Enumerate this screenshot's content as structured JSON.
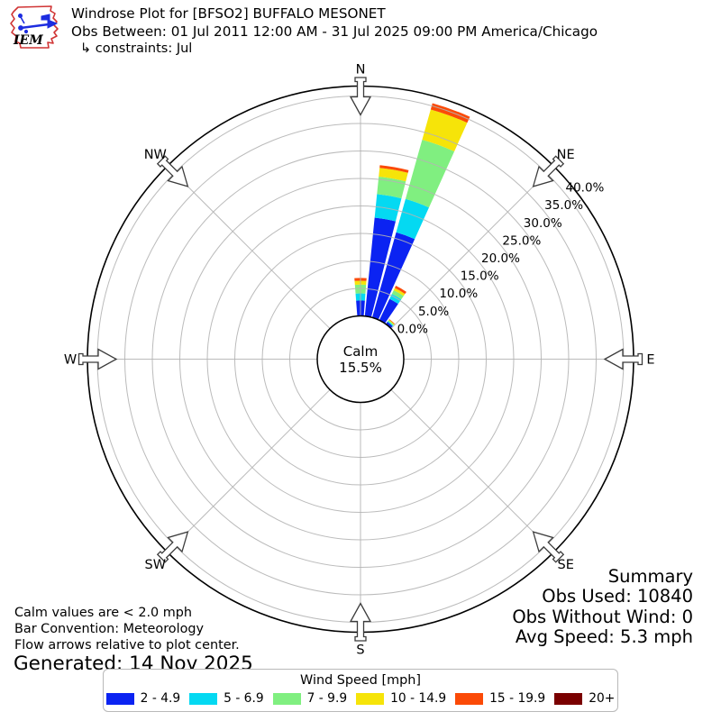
{
  "header": {
    "title": "Windrose Plot for [BFSO2] BUFFALO MESONET",
    "obs_between": "Obs Between: 01 Jul 2011 12:00 AM - 31 Jul 2025 09:00 PM America/Chicago",
    "constraints": "↳ constraints: Jul",
    "logo_text": "IEM"
  },
  "chart_data": {
    "type": "windrose",
    "title": "Windrose Plot for [BFSO2] BUFFALO MESONET",
    "units": "mph",
    "sector_width_deg": 10,
    "calm_label": "Calm",
    "calm_percent": 15.5,
    "r_axis": {
      "min": 0,
      "max": 40,
      "step": 5,
      "tick_labels": [
        "0.0%",
        "5.0%",
        "10.0%",
        "15.0%",
        "20.0%",
        "25.0%",
        "30.0%",
        "35.0%",
        "40.0%"
      ]
    },
    "compass_labels": [
      "N",
      "NE",
      "E",
      "SE",
      "S",
      "SW",
      "W",
      "NW"
    ],
    "speed_bins": [
      {
        "label": "2 - 4.9",
        "color": "#0b23f2"
      },
      {
        "label": "5 - 6.9",
        "color": "#04d9f2"
      },
      {
        "label": "7 - 9.9",
        "color": "#80ef80"
      },
      {
        "label": "10 - 14.9",
        "color": "#f6e409"
      },
      {
        "label": "15 - 19.9",
        "color": "#fb4a07"
      },
      {
        "label": "20+",
        "color": "#7a0000"
      }
    ],
    "sectors": [
      {
        "dir_deg": 0,
        "values": [
          2.8,
          1.3,
          1.6,
          0.7,
          0.5,
          0
        ]
      },
      {
        "dir_deg": 10,
        "values": [
          18.0,
          4.3,
          3.2,
          1.6,
          0.5,
          0
        ]
      },
      {
        "dir_deg": 20,
        "values": [
          16.1,
          6.3,
          11.2,
          5.7,
          1.2,
          0
        ]
      },
      {
        "dir_deg": 30,
        "values": [
          4.3,
          1.0,
          0.75,
          0.45,
          0.45,
          0
        ]
      },
      {
        "dir_deg": 40,
        "values": [
          0.5,
          0.15,
          0.2,
          0.15,
          0.1,
          0
        ]
      }
    ]
  },
  "notes": [
    "Calm values are < 2.0 mph",
    "Bar Convention: Meteorology",
    "Flow arrows relative to plot center."
  ],
  "generated": "Generated: 14 Nov 2025",
  "summary": {
    "title": "Summary",
    "obs_used": "Obs Used: 10840",
    "obs_without_wind": "Obs Without Wind: 0",
    "avg_speed": "Avg Speed: 5.3 mph"
  },
  "legend": {
    "title": "Wind Speed [mph]"
  }
}
